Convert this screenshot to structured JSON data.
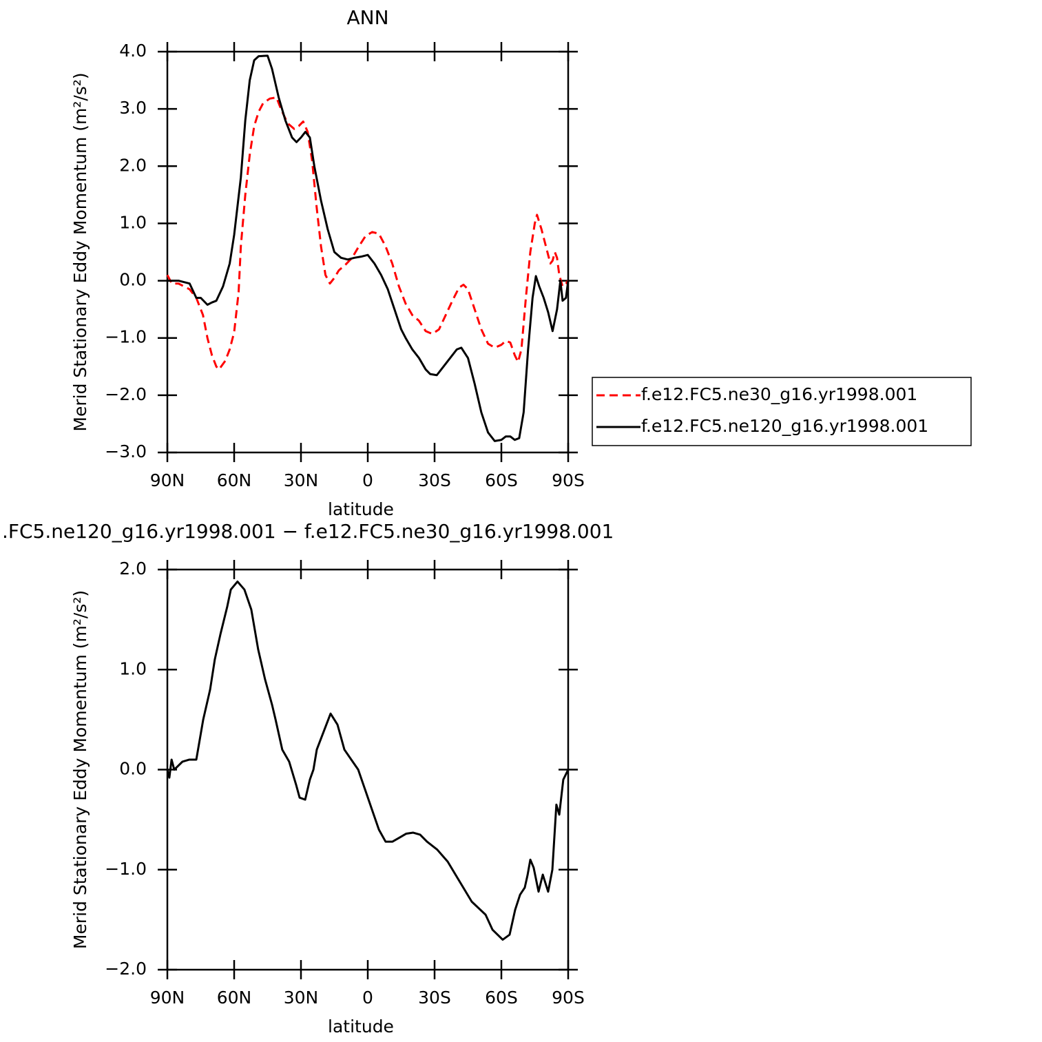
{
  "chart_data": [
    {
      "type": "line",
      "title": "ANN",
      "xlabel": "latitude",
      "ylabel": "Merid Stationary Eddy Momentum (m²/s²)",
      "xlim": [
        90,
        -90
      ],
      "xticks": [
        {
          "value": 90,
          "label": "90N"
        },
        {
          "value": 60,
          "label": "60N"
        },
        {
          "value": 30,
          "label": "30N"
        },
        0,
        {
          "value": -30,
          "label": "30S"
        },
        {
          "value": -60,
          "label": "60S"
        },
        {
          "value": -90,
          "label": "90S"
        }
      ],
      "ylim": [
        -3,
        4
      ],
      "yticks": [
        {
          "value": -3,
          "label": "−3.0"
        },
        {
          "value": -2,
          "label": "−2.0"
        },
        {
          "value": -1,
          "label": "−1.0"
        },
        {
          "value": 0,
          "label": "0.0"
        },
        {
          "value": 1,
          "label": "1.0"
        },
        {
          "value": 2,
          "label": "2.0"
        },
        {
          "value": 3,
          "label": "3.0"
        },
        {
          "value": 4,
          "label": "4.0"
        }
      ],
      "series": [
        {
          "name": "f.e12.FC5.ne30_g16.yr1998.001",
          "color": "#ff0000",
          "linestyle": "dashed",
          "x": [
            90,
            88,
            85,
            80,
            77,
            74,
            72,
            70,
            68,
            66.8,
            64,
            62,
            60,
            58,
            57,
            55,
            53,
            51,
            49,
            47,
            44,
            41,
            39,
            36,
            33,
            31,
            29,
            27,
            25,
            23,
            21,
            19,
            17,
            15,
            13,
            10,
            7,
            4,
            1,
            -2,
            -5,
            -8,
            -11,
            -14,
            -17,
            -20,
            -23,
            -26,
            -29,
            -32,
            -35,
            -38,
            -41,
            -43,
            -45,
            -48,
            -51,
            -54,
            -57,
            -60,
            -62,
            -64,
            -66,
            -67.5,
            -69,
            -71,
            -73,
            -75,
            -76,
            -78,
            -80,
            -82,
            -83,
            -84,
            -85,
            -86,
            -87.5,
            -89,
            -90
          ],
          "values": [
            0.1,
            -0.05,
            -0.05,
            -0.15,
            -0.3,
            -0.6,
            -1.0,
            -1.3,
            -1.5,
            -1.55,
            -1.4,
            -1.2,
            -0.9,
            -0.2,
            0.6,
            1.5,
            2.2,
            2.7,
            2.95,
            3.1,
            3.18,
            3.2,
            3.0,
            2.75,
            2.65,
            2.7,
            2.78,
            2.6,
            2.1,
            1.3,
            0.6,
            0.1,
            -0.05,
            0.05,
            0.18,
            0.28,
            0.4,
            0.6,
            0.78,
            0.85,
            0.82,
            0.6,
            0.3,
            -0.1,
            -0.4,
            -0.6,
            -0.7,
            -0.88,
            -0.93,
            -0.85,
            -0.6,
            -0.35,
            -0.12,
            -0.07,
            -0.15,
            -0.5,
            -0.85,
            -1.1,
            -1.17,
            -1.12,
            -1.05,
            -1.08,
            -1.3,
            -1.42,
            -1.2,
            -0.3,
            0.5,
            1.0,
            1.15,
            0.9,
            0.6,
            0.3,
            0.35,
            0.5,
            0.4,
            0.1,
            -0.1,
            -0.05,
            0.0
          ]
        },
        {
          "name": "f.e12.FC5.ne120_g16.yr1998.001",
          "color": "#000000",
          "linestyle": "solid",
          "x": [
            90,
            85,
            80,
            77,
            75,
            72,
            70,
            68,
            65,
            62,
            60,
            57,
            55,
            53,
            51,
            49,
            45,
            43,
            40,
            37,
            34,
            32,
            30,
            28,
            26,
            24,
            21,
            18,
            15,
            12,
            9,
            6,
            3,
            0,
            -3,
            -6,
            -9,
            -12,
            -15,
            -17,
            -20,
            -23,
            -26,
            -28,
            -31,
            -34,
            -37,
            -40,
            -42,
            -45,
            -48,
            -51,
            -54,
            -57,
            -60,
            -62,
            -64,
            -66,
            -68,
            -70,
            -72,
            -74,
            -75.5,
            -77,
            -79,
            -81,
            -83,
            -85,
            -86.5,
            -87.5,
            -89,
            -90
          ],
          "values": [
            0.0,
            0.0,
            -0.05,
            -0.3,
            -0.3,
            -0.42,
            -0.38,
            -0.35,
            -0.1,
            0.3,
            0.8,
            1.8,
            2.8,
            3.5,
            3.85,
            3.92,
            3.93,
            3.7,
            3.2,
            2.8,
            2.5,
            2.42,
            2.5,
            2.6,
            2.5,
            2.0,
            1.4,
            0.9,
            0.5,
            0.4,
            0.37,
            0.4,
            0.42,
            0.45,
            0.3,
            0.1,
            -0.15,
            -0.5,
            -0.85,
            -1.0,
            -1.2,
            -1.35,
            -1.55,
            -1.63,
            -1.65,
            -1.5,
            -1.35,
            -1.2,
            -1.17,
            -1.35,
            -1.8,
            -2.3,
            -2.65,
            -2.8,
            -2.78,
            -2.72,
            -2.72,
            -2.78,
            -2.75,
            -2.3,
            -1.2,
            -0.3,
            0.08,
            -0.1,
            -0.3,
            -0.55,
            -0.88,
            -0.5,
            0.0,
            -0.35,
            -0.3,
            0.0
          ]
        }
      ]
    },
    {
      "type": "line",
      "title": ".FC5.ne120_g16.yr1998.001 − f.e12.FC5.ne30_g16.yr1998.001",
      "xlabel": "latitude",
      "ylabel": "Merid Stationary Eddy Momentum (m²/s²)",
      "xlim": [
        90,
        -90
      ],
      "xticks": [
        {
          "value": 90,
          "label": "90N"
        },
        {
          "value": 60,
          "label": "60N"
        },
        {
          "value": 30,
          "label": "30N"
        },
        0,
        {
          "value": -30,
          "label": "30S"
        },
        {
          "value": -60,
          "label": "60S"
        },
        {
          "value": -90,
          "label": "90S"
        }
      ],
      "ylim": [
        -2,
        2
      ],
      "yticks": [
        {
          "value": -2,
          "label": "−2.0"
        },
        {
          "value": -1,
          "label": "−1.0"
        },
        {
          "value": 0,
          "label": "0.0"
        },
        {
          "value": 1,
          "label": "1.0"
        },
        {
          "value": 2,
          "label": "2.0"
        }
      ],
      "series": [
        {
          "color": "#000000",
          "linestyle": "solid",
          "x": [
            90,
            89.1,
            88.1,
            86.9,
            83.2,
            80.1,
            77.0,
            73.9,
            70.8,
            68.7,
            66.2,
            63.1,
            61.5,
            58.5,
            55.4,
            52.3,
            49.2,
            46.1,
            43.0,
            41.4,
            38.4,
            35.3,
            32.2,
            30.6,
            28.1,
            26.0,
            24.4,
            22.9,
            19.8,
            16.7,
            13.6,
            10.5,
            7.4,
            4.3,
            1.2,
            -1.9,
            -5.0,
            -8.0,
            -11.1,
            -14.2,
            -17.3,
            -20.4,
            -23.5,
            -26.6,
            -31.2,
            -35.9,
            -42.1,
            -46.7,
            -52.9,
            -56.0,
            -60.6,
            -63.7,
            -66.2,
            -68.4,
            -70.5,
            -71.8,
            -73.0,
            -74.5,
            -76.7,
            -78.6,
            -81.0,
            -82.9,
            -84.7,
            -86.0,
            -87.8,
            -90
          ],
          "values": [
            0.0,
            -0.08,
            0.1,
            0.0,
            0.08,
            0.1,
            0.1,
            0.5,
            0.8,
            1.1,
            1.35,
            1.63,
            1.8,
            1.88,
            1.8,
            1.6,
            1.2,
            0.9,
            0.65,
            0.5,
            0.2,
            0.08,
            -0.15,
            -0.28,
            -0.3,
            -0.1,
            0.0,
            0.2,
            0.38,
            0.56,
            0.45,
            0.2,
            0.1,
            0.0,
            -0.2,
            -0.4,
            -0.6,
            -0.72,
            -0.72,
            -0.68,
            -0.64,
            -0.63,
            -0.65,
            -0.72,
            -0.8,
            -0.92,
            -1.15,
            -1.32,
            -1.45,
            -1.6,
            -1.7,
            -1.65,
            -1.4,
            -1.25,
            -1.18,
            -1.05,
            -0.9,
            -0.98,
            -1.22,
            -1.05,
            -1.22,
            -1.0,
            -0.35,
            -0.45,
            -0.1,
            0.0
          ]
        }
      ]
    }
  ]
}
